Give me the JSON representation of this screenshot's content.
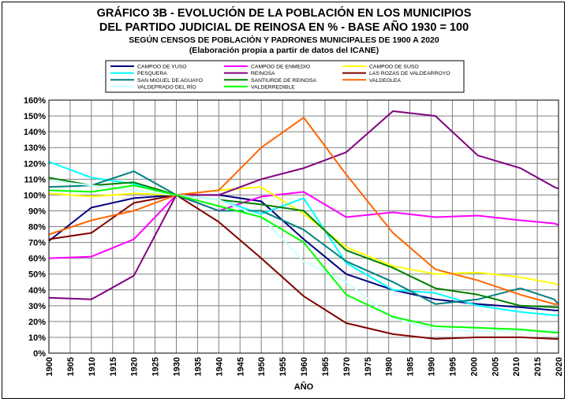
{
  "titles": {
    "line1": "GRÁFICO 3B - EVOLUCIÓN DE LA POBLACIÓN EN LOS MUNICIPIOS",
    "line2": "DEL PARTIDO JUDICIAL DE REINOSA EN % - BASE AÑO 1930 = 100",
    "line3": "SEGÚN CENSOS DE POBLACIÓN Y PADRONES MUNICIPALES DE 1900 A 2020",
    "line4": "(Elaboración propia a partir de datos del ICANE)"
  },
  "chart_data": {
    "type": "line",
    "title": "GRÁFICO 3B - EVOLUCIÓN DE LA POBLACIÓN EN LOS MUNICIPIOS DEL PARTIDO JUDICIAL DE REINOSA EN % - BASE AÑO 1930 = 100",
    "subtitle": "SEGÚN CENSOS DE POBLACIÓN Y PADRONES MUNICIPALES DE 1900 A 2020",
    "xlabel": "AÑO",
    "ylabel": "",
    "xlim": [
      1900,
      2020
    ],
    "ylim": [
      0,
      160
    ],
    "x_ticks": [
      1900,
      1905,
      1910,
      1915,
      1920,
      1925,
      1930,
      1935,
      1940,
      1945,
      1950,
      1955,
      1960,
      1965,
      1970,
      1975,
      1980,
      1985,
      1990,
      1995,
      2000,
      2005,
      2010,
      2015,
      2020
    ],
    "y_ticks": [
      0,
      10,
      20,
      30,
      40,
      50,
      60,
      70,
      80,
      90,
      100,
      110,
      120,
      130,
      140,
      150,
      160
    ],
    "y_tick_suffix": "%",
    "grid": true,
    "legend_position": "top",
    "series": [
      {
        "name": "CAMPOO DE YUSO",
        "color": "#000080",
        "points": [
          [
            1900,
            71
          ],
          [
            1910,
            92
          ],
          [
            1920,
            98
          ],
          [
            1930,
            100
          ],
          [
            1940,
            100
          ],
          [
            1950,
            96
          ],
          [
            1960,
            72
          ],
          [
            1970,
            50
          ],
          [
            1981,
            40
          ],
          [
            1991,
            34
          ],
          [
            2001,
            31
          ],
          [
            2011,
            29
          ],
          [
            2019,
            27
          ],
          [
            2020,
            27
          ]
        ]
      },
      {
        "name": "CAMPOO DE ENMEDIO",
        "color": "#ff00ff",
        "points": [
          [
            1900,
            60
          ],
          [
            1910,
            61
          ],
          [
            1920,
            72
          ],
          [
            1930,
            100
          ],
          [
            1940,
            90
          ],
          [
            1950,
            99
          ],
          [
            1960,
            102
          ],
          [
            1970,
            86
          ],
          [
            1981,
            89
          ],
          [
            1991,
            86
          ],
          [
            2001,
            87
          ],
          [
            2011,
            84
          ],
          [
            2019,
            82
          ],
          [
            2020,
            81
          ]
        ]
      },
      {
        "name": "CAMPOO DE SUSO",
        "color": "#ffff00",
        "points": [
          [
            1900,
            101
          ],
          [
            1910,
            99
          ],
          [
            1920,
            101
          ],
          [
            1930,
            100
          ],
          [
            1940,
            103
          ],
          [
            1950,
            105
          ],
          [
            1960,
            88
          ],
          [
            1970,
            67
          ],
          [
            1981,
            55
          ],
          [
            1991,
            50
          ],
          [
            2001,
            51
          ],
          [
            2011,
            48
          ],
          [
            2019,
            44
          ],
          [
            2020,
            43
          ]
        ]
      },
      {
        "name": "PESQUERA",
        "color": "#00ffff",
        "points": [
          [
            1900,
            121
          ],
          [
            1910,
            111
          ],
          [
            1920,
            107
          ],
          [
            1930,
            100
          ],
          [
            1940,
            97
          ],
          [
            1950,
            88
          ],
          [
            1960,
            98
          ],
          [
            1970,
            57
          ],
          [
            1981,
            40
          ],
          [
            1991,
            38
          ],
          [
            2001,
            30
          ],
          [
            2011,
            26
          ],
          [
            2019,
            24
          ],
          [
            2020,
            24
          ]
        ]
      },
      {
        "name": "REINOSA",
        "color": "#800080",
        "points": [
          [
            1900,
            35
          ],
          [
            1910,
            34
          ],
          [
            1920,
            49
          ],
          [
            1930,
            100
          ],
          [
            1940,
            100
          ],
          [
            1950,
            110
          ],
          [
            1960,
            117
          ],
          [
            1970,
            127
          ],
          [
            1981,
            153
          ],
          [
            1991,
            150
          ],
          [
            2001,
            125
          ],
          [
            2011,
            117
          ],
          [
            2019,
            105
          ],
          [
            2020,
            104
          ]
        ]
      },
      {
        "name": "LAS ROZAS DE VALDEARROYO",
        "color": "#800000",
        "points": [
          [
            1900,
            72
          ],
          [
            1910,
            76
          ],
          [
            1920,
            95
          ],
          [
            1930,
            100
          ],
          [
            1940,
            83
          ],
          [
            1950,
            60
          ],
          [
            1960,
            36
          ],
          [
            1970,
            19
          ],
          [
            1981,
            12
          ],
          [
            1991,
            9
          ],
          [
            2001,
            10
          ],
          [
            2011,
            10
          ],
          [
            2019,
            9
          ],
          [
            2020,
            9
          ]
        ]
      },
      {
        "name": "SAN MIGUEL DE AGUAYO",
        "color": "#008080",
        "points": [
          [
            1900,
            105
          ],
          [
            1910,
            106
          ],
          [
            1920,
            115
          ],
          [
            1930,
            100
          ],
          [
            1940,
            90
          ],
          [
            1950,
            90
          ],
          [
            1960,
            78
          ],
          [
            1970,
            58
          ],
          [
            1981,
            45
          ],
          [
            1991,
            31
          ],
          [
            2001,
            34
          ],
          [
            2011,
            41
          ],
          [
            2019,
            34
          ],
          [
            2020,
            31
          ]
        ]
      },
      {
        "name": "SANTIURDE DE REINOSA",
        "color": "#008000",
        "points": [
          [
            1900,
            111
          ],
          [
            1910,
            106
          ],
          [
            1920,
            108
          ],
          [
            1930,
            100
          ],
          [
            1940,
            97
          ],
          [
            1950,
            94
          ],
          [
            1960,
            90
          ],
          [
            1970,
            65
          ],
          [
            1981,
            54
          ],
          [
            1991,
            41
          ],
          [
            2001,
            37
          ],
          [
            2011,
            30
          ],
          [
            2019,
            29
          ],
          [
            2020,
            29
          ]
        ]
      },
      {
        "name": "VALDEOLEA",
        "color": "#ff6600",
        "points": [
          [
            1900,
            75
          ],
          [
            1910,
            84
          ],
          [
            1920,
            90
          ],
          [
            1930,
            100
          ],
          [
            1940,
            103
          ],
          [
            1950,
            130
          ],
          [
            1960,
            149
          ],
          [
            1970,
            113
          ],
          [
            1981,
            76
          ],
          [
            1991,
            53
          ],
          [
            2001,
            46
          ],
          [
            2011,
            37
          ],
          [
            2019,
            31
          ],
          [
            2020,
            31
          ]
        ]
      },
      {
        "name": "VALDEPRADO DEL RÍO",
        "color": "#ccffff",
        "points": [
          [
            1900,
            109
          ],
          [
            1910,
            106
          ],
          [
            1920,
            103
          ],
          [
            1930,
            100
          ],
          [
            1940,
            97
          ],
          [
            1950,
            86
          ],
          [
            1960,
            58
          ],
          [
            1970,
            45
          ],
          [
            1981,
            22
          ],
          [
            1991,
            15
          ],
          [
            2001,
            14
          ],
          [
            2011,
            14
          ],
          [
            2019,
            14
          ],
          [
            2020,
            14
          ]
        ]
      },
      {
        "name": "VALDERREDIBLE",
        "color": "#00ff00",
        "points": [
          [
            1900,
            103
          ],
          [
            1910,
            102
          ],
          [
            1920,
            106
          ],
          [
            1930,
            100
          ],
          [
            1940,
            93
          ],
          [
            1950,
            86
          ],
          [
            1960,
            70
          ],
          [
            1970,
            37
          ],
          [
            1981,
            23
          ],
          [
            1991,
            17
          ],
          [
            2001,
            16
          ],
          [
            2011,
            15
          ],
          [
            2019,
            13
          ],
          [
            2020,
            13
          ]
        ]
      }
    ]
  }
}
